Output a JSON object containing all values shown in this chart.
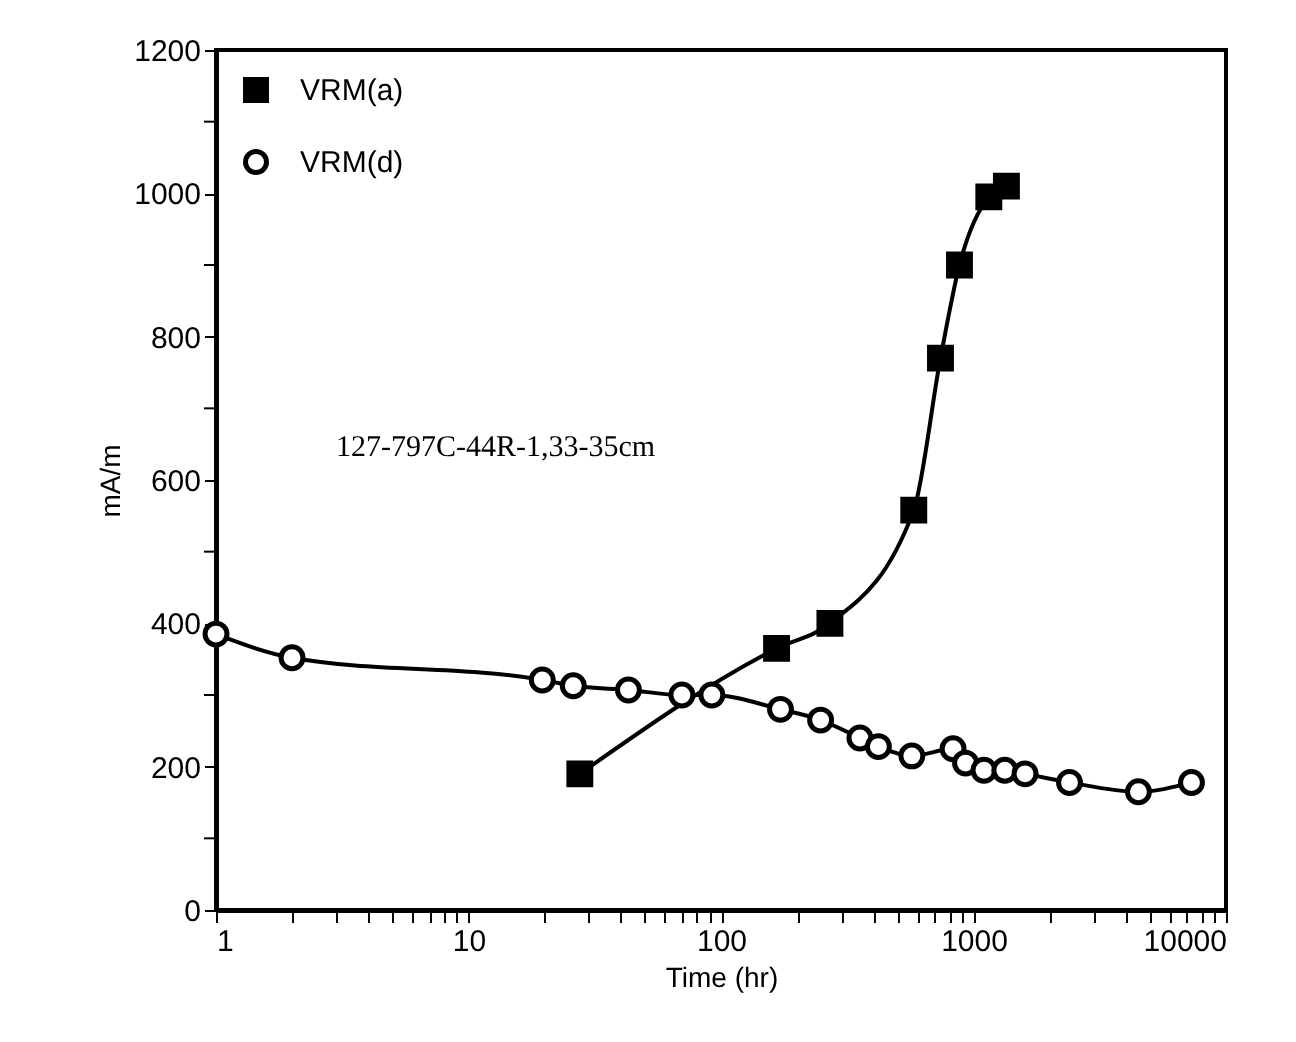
{
  "chart_data": {
    "type": "line",
    "xlabel": "Time (hr)",
    "ylabel": "mA/m",
    "log": "x",
    "xlim": [
      1,
      10000
    ],
    "ylim": [
      0,
      1200
    ],
    "xticks": [
      1,
      {
        "value": 2,
        "label": null
      },
      {
        "value": 3,
        "label": null
      },
      {
        "value": 4,
        "label": null
      },
      {
        "value": 5,
        "label": null
      },
      {
        "value": 6,
        "label": null
      },
      {
        "value": 7,
        "label": null
      },
      {
        "value": 8,
        "label": null
      },
      {
        "value": 9,
        "label": null
      },
      10,
      {
        "value": 20,
        "label": null
      },
      {
        "value": 30,
        "label": null
      },
      {
        "value": 40,
        "label": null
      },
      {
        "value": 50,
        "label": null
      },
      {
        "value": 60,
        "label": null
      },
      {
        "value": 70,
        "label": null
      },
      {
        "value": 80,
        "label": null
      },
      {
        "value": 90,
        "label": null
      },
      100,
      {
        "value": 200,
        "label": null
      },
      {
        "value": 300,
        "label": null
      },
      {
        "value": 400,
        "label": null
      },
      {
        "value": 500,
        "label": null
      },
      {
        "value": 600,
        "label": null
      },
      {
        "value": 700,
        "label": null
      },
      {
        "value": 800,
        "label": null
      },
      {
        "value": 900,
        "label": null
      },
      1000,
      {
        "value": 2000,
        "label": null
      },
      {
        "value": 3000,
        "label": null
      },
      {
        "value": 4000,
        "label": null
      },
      {
        "value": 5000,
        "label": null
      },
      {
        "value": 6000,
        "label": null
      },
      {
        "value": 7000,
        "label": null
      },
      {
        "value": 8000,
        "label": null
      },
      {
        "value": 9000,
        "label": null
      },
      10000
    ],
    "yticks": [
      0,
      {
        "value": 100,
        "label": null
      },
      200,
      {
        "value": 300,
        "label": null
      },
      400,
      {
        "value": 500,
        "label": null
      },
      600,
      {
        "value": 700,
        "label": null
      },
      800,
      {
        "value": 900,
        "label": null
      },
      1000,
      {
        "value": 1100,
        "label": null
      },
      1200
    ],
    "grid": false,
    "legend": "top left",
    "annotations": [
      "127-797C-44R-1,33-35cm"
    ],
    "series": [
      {
        "name": "VRM(a)",
        "color": "#000000",
        "marker": "square",
        "x": [
          27.6,
          166,
          270,
          580,
          740,
          880,
          1150,
          1350
        ],
        "values": [
          190,
          365,
          400,
          558,
          770,
          900,
          995,
          1010
        ]
      },
      {
        "name": "VRM(d)",
        "color": "#000000",
        "marker": "circle",
        "x": [
          1,
          2,
          19.6,
          26,
          43,
          70,
          92,
          172,
          248,
          355,
          420,
          570,
          830,
          930,
          1100,
          1330,
          1600,
          2400,
          4500,
          7300
        ],
        "values": [
          385,
          352,
          321,
          313,
          307,
          300,
          300,
          280,
          265,
          240,
          228,
          215,
          225,
          205,
          195,
          195,
          190,
          178,
          165,
          178
        ]
      }
    ]
  }
}
